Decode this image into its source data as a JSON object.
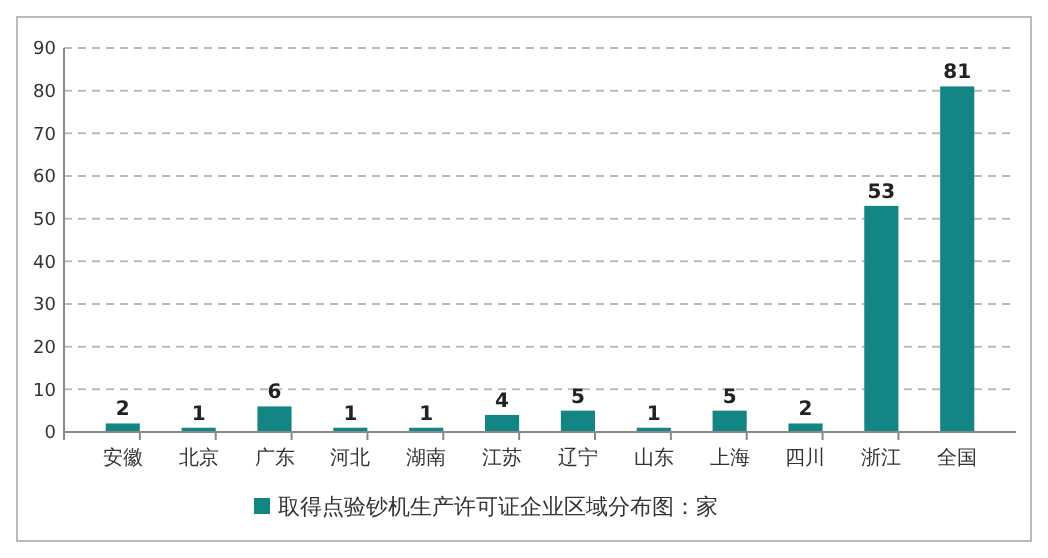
{
  "chart_data": {
    "type": "bar",
    "categories": [
      "安徽",
      "北京",
      "广东",
      "河北",
      "湖南",
      "江苏",
      "辽宁",
      "山东",
      "上海",
      "四川",
      "浙江",
      "全国"
    ],
    "series": [
      {
        "name": "取得点验钞机生产许可证企业区域分布图：家",
        "color": "#138585",
        "values": [
          2,
          1,
          6,
          1,
          1,
          4,
          5,
          1,
          5,
          2,
          53,
          81
        ]
      }
    ],
    "ylim": [
      0,
      90
    ],
    "yticks": [
      0,
      10,
      20,
      30,
      40,
      50,
      60,
      70,
      80,
      90
    ],
    "grid": "y",
    "data_labels": true,
    "legend": "bottom"
  }
}
